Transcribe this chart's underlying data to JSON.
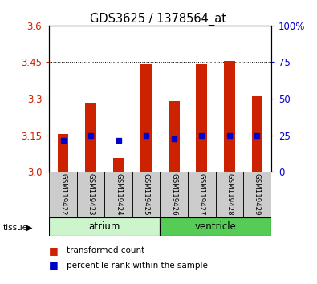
{
  "title": "GDS3625 / 1378564_at",
  "samples": [
    "GSM119422",
    "GSM119423",
    "GSM119424",
    "GSM119425",
    "GSM119426",
    "GSM119427",
    "GSM119428",
    "GSM119429"
  ],
  "red_values": [
    3.155,
    3.285,
    3.055,
    3.44,
    3.29,
    3.44,
    3.455,
    3.31
  ],
  "blue_values": [
    3.13,
    3.15,
    3.13,
    3.15,
    3.135,
    3.15,
    3.15,
    3.15
  ],
  "y_min": 3.0,
  "y_max": 3.6,
  "y_ticks": [
    3.0,
    3.15,
    3.3,
    3.45,
    3.6
  ],
  "y_ticks_right": [
    0,
    25,
    50,
    75,
    100
  ],
  "bar_color": "#cc2200",
  "dot_color": "#0000cc",
  "left_tick_color": "#cc2200",
  "right_tick_color": "#0000cc",
  "sample_bg_color": "#cccccc",
  "atrium_color": "#ccf5cc",
  "ventricle_color": "#55cc55",
  "bar_width": 0.4
}
